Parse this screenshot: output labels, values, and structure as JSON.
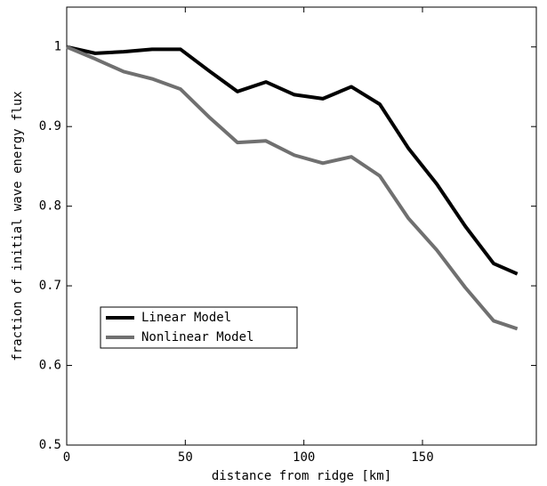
{
  "chart_data": {
    "type": "line",
    "xlabel": "distance from ridge [km]",
    "ylabel": "fraction of initial wave energy flux",
    "x": [
      0,
      12,
      24,
      36,
      48,
      60,
      72,
      84,
      96,
      108,
      120,
      132,
      144,
      156,
      168,
      180,
      190
    ],
    "series": [
      {
        "name": "Linear Model",
        "color": "#000000",
        "values": [
          1.0,
          0.992,
          0.994,
          0.997,
          0.997,
          0.97,
          0.944,
          0.956,
          0.94,
          0.935,
          0.95,
          0.928,
          0.873,
          0.828,
          0.775,
          0.728,
          0.715
        ]
      },
      {
        "name": "Nonlinear Model",
        "color": "#707070",
        "values": [
          1.0,
          0.985,
          0.969,
          0.96,
          0.947,
          0.912,
          0.88,
          0.882,
          0.864,
          0.854,
          0.862,
          0.838,
          0.785,
          0.745,
          0.698,
          0.656,
          0.646
        ]
      }
    ],
    "xlim": [
      0,
      198
    ],
    "ylim": [
      0.5,
      1.05
    ],
    "xticks": [
      0,
      50,
      100,
      150
    ],
    "yticks": [
      0.5,
      0.6,
      0.7,
      0.8,
      0.9,
      1
    ],
    "legend": "lower left"
  }
}
